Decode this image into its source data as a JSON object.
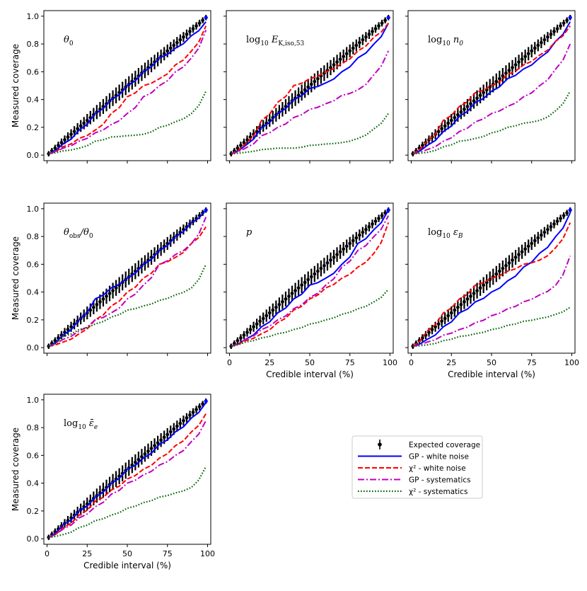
{
  "figure": {
    "y_label": "Measured coverage",
    "x_label": "Credible interval (%)"
  },
  "legend": {
    "entries": [
      {
        "key": "expected",
        "label": "Expected coverage",
        "color": "#000000",
        "style": "marker"
      },
      {
        "key": "gp_white",
        "label": "GP - white noise",
        "color": "#0000ff",
        "style": "solid"
      },
      {
        "key": "chi2_white",
        "label": "χ² - white noise",
        "color": "#ff0000",
        "style": "dashed"
      },
      {
        "key": "gp_sys",
        "label": "GP - systematics",
        "color": "#bf00bf",
        "style": "dashdot"
      },
      {
        "key": "chi2_sys",
        "label": "χ² - systematics",
        "color": "#006400",
        "style": "dotted"
      }
    ]
  },
  "chart_data": [
    {
      "type": "line",
      "title": "θ0",
      "xlabel": "",
      "ylabel": "Measured coverage",
      "xlim": [
        -2,
        102
      ],
      "ylim": [
        -0.04,
        1.04
      ],
      "xticks": [
        "0",
        "25",
        "50",
        "75",
        "100"
      ],
      "yticks": [
        "0.0",
        "0.2",
        "0.4",
        "0.6",
        "0.8",
        "1.0"
      ],
      "show_xticklabels": false,
      "show_yticklabels": true,
      "x": [
        1,
        10,
        20,
        30,
        40,
        50,
        60,
        70,
        80,
        90,
        99
      ],
      "series": [
        {
          "name": "GP - white noise",
          "values": [
            0.01,
            0.08,
            0.18,
            0.3,
            0.4,
            0.5,
            0.6,
            0.7,
            0.77,
            0.86,
            0.96
          ]
        },
        {
          "name": "χ² - white noise",
          "values": [
            0.01,
            0.06,
            0.12,
            0.18,
            0.3,
            0.42,
            0.5,
            0.55,
            0.65,
            0.75,
            0.93
          ]
        },
        {
          "name": "GP - systematics",
          "values": [
            0.01,
            0.05,
            0.1,
            0.16,
            0.22,
            0.3,
            0.42,
            0.5,
            0.6,
            0.7,
            0.9
          ]
        },
        {
          "name": "χ² - systematics",
          "values": [
            0.01,
            0.03,
            0.05,
            0.1,
            0.13,
            0.14,
            0.15,
            0.2,
            0.24,
            0.3,
            0.46
          ]
        }
      ]
    },
    {
      "type": "line",
      "title": "log10 E_K,iso,53",
      "xlabel": "",
      "ylabel": "",
      "xlim": [
        -2,
        102
      ],
      "ylim": [
        -0.04,
        1.04
      ],
      "xticks": [
        "0",
        "25",
        "50",
        "75",
        "100"
      ],
      "yticks": [
        "0.0",
        "0.2",
        "0.4",
        "0.6",
        "0.8",
        "1.0"
      ],
      "show_xticklabels": false,
      "show_yticklabels": false,
      "x": [
        1,
        10,
        20,
        30,
        40,
        50,
        60,
        70,
        80,
        90,
        99
      ],
      "series": [
        {
          "name": "GP - white noise",
          "values": [
            0.01,
            0.07,
            0.2,
            0.3,
            0.4,
            0.48,
            0.52,
            0.6,
            0.7,
            0.8,
            0.95
          ]
        },
        {
          "name": "χ² - white noise",
          "values": [
            0.01,
            0.08,
            0.25,
            0.38,
            0.5,
            0.55,
            0.6,
            0.66,
            0.75,
            0.85,
            0.95
          ]
        },
        {
          "name": "GP - systematics",
          "values": [
            0.01,
            0.05,
            0.14,
            0.2,
            0.27,
            0.33,
            0.37,
            0.43,
            0.47,
            0.58,
            0.75
          ]
        },
        {
          "name": "χ² - systematics",
          "values": [
            0.01,
            0.02,
            0.04,
            0.05,
            0.05,
            0.07,
            0.08,
            0.09,
            0.12,
            0.19,
            0.3
          ]
        }
      ]
    },
    {
      "type": "line",
      "title": "log10 n0",
      "xlabel": "",
      "ylabel": "",
      "xlim": [
        -2,
        102
      ],
      "ylim": [
        -0.04,
        1.04
      ],
      "xticks": [
        "0",
        "25",
        "50",
        "75",
        "100"
      ],
      "yticks": [
        "0.0",
        "0.2",
        "0.4",
        "0.6",
        "0.8",
        "1.0"
      ],
      "show_xticklabels": false,
      "show_yticklabels": false,
      "x": [
        1,
        10,
        20,
        30,
        40,
        50,
        60,
        70,
        80,
        90,
        99
      ],
      "series": [
        {
          "name": "GP - white noise",
          "values": [
            0.01,
            0.07,
            0.17,
            0.28,
            0.38,
            0.46,
            0.55,
            0.62,
            0.7,
            0.82,
            0.96
          ]
        },
        {
          "name": "χ² - white noise",
          "values": [
            0.01,
            0.1,
            0.25,
            0.35,
            0.45,
            0.5,
            0.58,
            0.65,
            0.72,
            0.82,
            0.93
          ]
        },
        {
          "name": "GP - systematics",
          "values": [
            0.01,
            0.04,
            0.1,
            0.17,
            0.24,
            0.3,
            0.35,
            0.42,
            0.5,
            0.62,
            0.8
          ]
        },
        {
          "name": "χ² - systematics",
          "values": [
            0.01,
            0.02,
            0.06,
            0.1,
            0.12,
            0.16,
            0.2,
            0.23,
            0.25,
            0.32,
            0.46
          ]
        }
      ]
    },
    {
      "type": "line",
      "title": "θobs/θ0",
      "xlabel": "",
      "ylabel": "Measured coverage",
      "xlim": [
        -2,
        102
      ],
      "ylim": [
        -0.04,
        1.04
      ],
      "xticks": [
        "0",
        "25",
        "50",
        "75",
        "100"
      ],
      "yticks": [
        "0.0",
        "0.2",
        "0.4",
        "0.6",
        "0.8",
        "1.0"
      ],
      "show_xticklabels": false,
      "show_yticklabels": true,
      "x": [
        1,
        10,
        20,
        30,
        40,
        50,
        60,
        70,
        80,
        90,
        99
      ],
      "series": [
        {
          "name": "GP - white noise",
          "values": [
            0.01,
            0.09,
            0.2,
            0.35,
            0.43,
            0.5,
            0.6,
            0.7,
            0.8,
            0.9,
            0.99
          ]
        },
        {
          "name": "χ² - white noise",
          "values": [
            0.01,
            0.04,
            0.1,
            0.2,
            0.3,
            0.4,
            0.5,
            0.6,
            0.65,
            0.75,
            0.87
          ]
        },
        {
          "name": "GP - systematics",
          "values": [
            0.01,
            0.06,
            0.12,
            0.2,
            0.25,
            0.35,
            0.45,
            0.6,
            0.67,
            0.75,
            0.94
          ]
        },
        {
          "name": "χ² - systematics",
          "values": [
            0.01,
            0.08,
            0.13,
            0.17,
            0.22,
            0.27,
            0.3,
            0.34,
            0.38,
            0.43,
            0.6
          ]
        }
      ]
    },
    {
      "type": "line",
      "title": "p",
      "xlabel": "Credible interval (%)",
      "ylabel": "",
      "xlim": [
        -2,
        102
      ],
      "ylim": [
        -0.04,
        1.04
      ],
      "xticks": [
        "0",
        "25",
        "50",
        "75",
        "100"
      ],
      "yticks": [
        "0.0",
        "0.2",
        "0.4",
        "0.6",
        "0.8",
        "1.0"
      ],
      "show_xticklabels": true,
      "show_yticklabels": false,
      "x": [
        1,
        10,
        20,
        30,
        40,
        50,
        60,
        70,
        80,
        90,
        99
      ],
      "series": [
        {
          "name": "GP - white noise",
          "values": [
            0.01,
            0.06,
            0.15,
            0.25,
            0.35,
            0.45,
            0.5,
            0.6,
            0.75,
            0.85,
            0.99
          ]
        },
        {
          "name": "χ² - white noise",
          "values": [
            0.01,
            0.05,
            0.1,
            0.18,
            0.27,
            0.35,
            0.43,
            0.5,
            0.58,
            0.68,
            0.9
          ]
        },
        {
          "name": "GP - systematics",
          "values": [
            0.01,
            0.06,
            0.13,
            0.2,
            0.28,
            0.36,
            0.45,
            0.58,
            0.7,
            0.8,
            0.95
          ]
        },
        {
          "name": "χ² - systematics",
          "values": [
            0.01,
            0.04,
            0.07,
            0.1,
            0.13,
            0.17,
            0.2,
            0.24,
            0.28,
            0.33,
            0.42
          ]
        }
      ]
    },
    {
      "type": "line",
      "title": "log10 εB",
      "xlabel": "Credible interval (%)",
      "ylabel": "",
      "xlim": [
        -2,
        102
      ],
      "ylim": [
        -0.04,
        1.04
      ],
      "xticks": [
        "0",
        "25",
        "50",
        "75",
        "100"
      ],
      "yticks": [
        "0.0",
        "0.2",
        "0.4",
        "0.6",
        "0.8",
        "1.0"
      ],
      "show_xticklabels": true,
      "show_yticklabels": false,
      "x": [
        1,
        10,
        20,
        30,
        40,
        50,
        60,
        70,
        80,
        90,
        99
      ],
      "series": [
        {
          "name": "GP - white noise",
          "values": [
            0.01,
            0.06,
            0.15,
            0.25,
            0.33,
            0.4,
            0.48,
            0.58,
            0.68,
            0.8,
            0.97
          ]
        },
        {
          "name": "χ² - white noise",
          "values": [
            0.01,
            0.12,
            0.25,
            0.35,
            0.45,
            0.5,
            0.55,
            0.6,
            0.63,
            0.72,
            0.9
          ]
        },
        {
          "name": "GP - systematics",
          "values": [
            0.01,
            0.04,
            0.09,
            0.13,
            0.18,
            0.23,
            0.28,
            0.33,
            0.38,
            0.45,
            0.66
          ]
        },
        {
          "name": "χ² - systematics",
          "values": [
            0.01,
            0.02,
            0.05,
            0.08,
            0.1,
            0.13,
            0.16,
            0.19,
            0.21,
            0.24,
            0.29
          ]
        }
      ]
    },
    {
      "type": "line",
      "title": "log10 ε̄e",
      "xlabel": "Credible interval (%)",
      "ylabel": "Measured coverage",
      "xlim": [
        -2,
        102
      ],
      "ylim": [
        -0.04,
        1.04
      ],
      "xticks": [
        "0",
        "25",
        "50",
        "75",
        "100"
      ],
      "yticks": [
        "0.0",
        "0.2",
        "0.4",
        "0.6",
        "0.8",
        "1.0"
      ],
      "show_xticklabels": true,
      "show_yticklabels": true,
      "x": [
        1,
        10,
        20,
        30,
        40,
        50,
        60,
        70,
        80,
        90,
        99
      ],
      "series": [
        {
          "name": "GP - white noise",
          "values": [
            0.01,
            0.1,
            0.2,
            0.3,
            0.4,
            0.5,
            0.58,
            0.68,
            0.77,
            0.87,
            0.98
          ]
        },
        {
          "name": "χ² - white noise",
          "values": [
            0.01,
            0.08,
            0.17,
            0.27,
            0.35,
            0.43,
            0.5,
            0.58,
            0.67,
            0.77,
            0.9
          ]
        },
        {
          "name": "GP - systematics",
          "values": [
            0.01,
            0.07,
            0.15,
            0.23,
            0.32,
            0.4,
            0.46,
            0.53,
            0.6,
            0.7,
            0.85
          ]
        },
        {
          "name": "χ² - systematics",
          "values": [
            0.01,
            0.03,
            0.08,
            0.13,
            0.17,
            0.22,
            0.26,
            0.3,
            0.33,
            0.37,
            0.52
          ]
        }
      ]
    }
  ]
}
